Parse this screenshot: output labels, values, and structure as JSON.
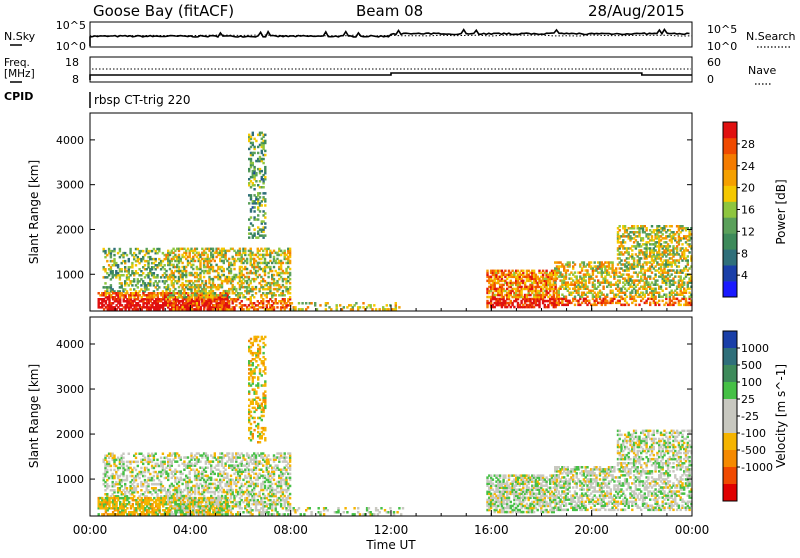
{
  "header": {
    "station": "Goose Bay (fitACF)",
    "beam": "Beam 08",
    "date": "28/Aug/2015"
  },
  "noise_panel": {
    "left_label": "N.Sky",
    "right_label": "N.Search",
    "left_ticks": [
      "10^5",
      "10^0"
    ],
    "right_ticks": [
      "10^5",
      "10^0"
    ]
  },
  "freq_panel": {
    "left_label_1": "Freq.",
    "left_label_2": "[MHz]",
    "right_label": "Nave",
    "left_ticks": [
      "18",
      "8"
    ],
    "right_ticks": [
      "60",
      "0"
    ]
  },
  "cpid": {
    "label": "CPID",
    "value": "rbsp CT-trig 220"
  },
  "x_axis": {
    "label": "Time UT",
    "ticks": [
      "00:00",
      "04:00",
      "08:00",
      "12:00",
      "16:00",
      "20:00",
      "00:00"
    ]
  },
  "colors": {
    "power": [
      "#1a1aff",
      "#1a3fa8",
      "#2f6f7a",
      "#3d8a5a",
      "#5aa05a",
      "#8ec63f",
      "#f5c800",
      "#f5a000",
      "#f57c00",
      "#f04a00",
      "#e01010"
    ],
    "velocity": [
      "#e00000",
      "#f04a00",
      "#f58a00",
      "#f5b400",
      "#c8c8c0",
      "#c8c8c0",
      "#46c046",
      "#3d8a5a",
      "#2f6f7a",
      "#1a3fa8"
    ]
  },
  "chart_data": [
    {
      "type": "heatmap",
      "name": "Power",
      "ylabel": "Slant Range [km]",
      "xlabel": "",
      "xlim_hours": [
        0,
        24
      ],
      "ylim_km": [
        180,
        4600
      ],
      "yticks": [
        1000,
        2000,
        3000,
        4000
      ],
      "colorbar": {
        "label": "Power [dB]",
        "ticks": [
          "4",
          "8",
          "12",
          "16",
          "20",
          "24",
          "28"
        ],
        "range": [
          0,
          32
        ]
      },
      "regions": [
        {
          "t": [
            0.5,
            3.0
          ],
          "r": [
            600,
            1600
          ],
          "level": 0.45
        },
        {
          "t": [
            0.3,
            5.5
          ],
          "r": [
            200,
            600
          ],
          "level": 0.8
        },
        {
          "t": [
            3.0,
            8.0
          ],
          "r": [
            200,
            1600
          ],
          "level": 0.55
        },
        {
          "t": [
            6.3,
            7.0
          ],
          "r": [
            1800,
            4200
          ],
          "level": 0.4
        },
        {
          "t": [
            8.0,
            12.5
          ],
          "r": [
            200,
            400
          ],
          "level": 0.3
        },
        {
          "t": [
            15.8,
            18.6
          ],
          "r": [
            250,
            1100
          ],
          "level": 0.75
        },
        {
          "t": [
            18.5,
            21.0
          ],
          "r": [
            300,
            1300
          ],
          "level": 0.6
        },
        {
          "t": [
            21.0,
            24.0
          ],
          "r": [
            300,
            2100
          ],
          "level": 0.55
        }
      ]
    },
    {
      "type": "heatmap",
      "name": "Velocity",
      "ylabel": "Slant Range [km]",
      "xlabel": "Time UT",
      "xlim_hours": [
        0,
        24
      ],
      "ylim_km": [
        180,
        4600
      ],
      "yticks": [
        1000,
        2000,
        3000,
        4000
      ],
      "colorbar": {
        "label": "Velocity [m s^-1]",
        "ticks": [
          "1000",
          "500",
          "100",
          "25",
          "-25",
          "-100",
          "-500",
          "-1000"
        ]
      },
      "regions": [
        {
          "t": [
            0.5,
            5.5
          ],
          "r": [
            200,
            1600
          ],
          "class": "mixed green/grey"
        },
        {
          "t": [
            3.0,
            8.5
          ],
          "r": [
            200,
            700
          ],
          "class": "orange (negative)"
        },
        {
          "t": [
            8.0,
            12.5
          ],
          "r": [
            200,
            400
          ],
          "class": "orange"
        },
        {
          "t": [
            16.0,
            18.6
          ],
          "r": [
            300,
            600
          ],
          "class": "orange/green"
        },
        {
          "t": [
            18.5,
            24.0
          ],
          "r": [
            250,
            1100
          ],
          "class": "grey/green"
        }
      ]
    }
  ]
}
